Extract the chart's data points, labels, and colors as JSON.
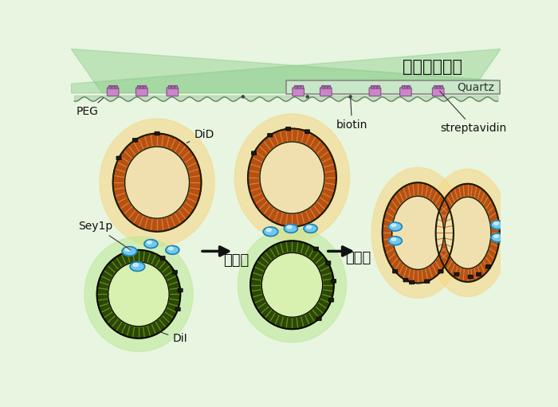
{
  "title": "전반사현미경",
  "quartz_label": "Quartz",
  "peg_label": "PEG",
  "did_label": "DiD",
  "dil_label": "DiI",
  "biotin_label": "biotin",
  "streptavidin_label": "streptavidin",
  "sey1p_label": "Sey1p",
  "step1_label": "막접촉",
  "step2_label": "막융합",
  "bg_color": "#e8f5e0",
  "membrane_orange_outer": "#b85010",
  "membrane_orange_stripe": "#d48040",
  "membrane_orange_inner_bg": "#f0e0b0",
  "glow_orange": "#f5d888",
  "membrane_green_outer": "#2a4808",
  "membrane_green_stripe": "#6a9010",
  "membrane_green_inner_bg": "#d8f0b0",
  "glow_green": "#b8e890",
  "protein_color": "#70c8f0",
  "protein_edge": "#2080b0",
  "streptavidin_fill": "#c888c8",
  "streptavidin_edge": "#885088",
  "connector_color": "#222222",
  "arrow_color": "#111111",
  "text_color": "#111111",
  "quartz_fill": "#c8e8c8",
  "quartz_edge": "#888888",
  "lipid_color": "#a0c8a0",
  "peg_color": "#888888",
  "beam_color": "#80c880",
  "beam_alpha": 0.4,
  "figsize": [
    7.0,
    5.11
  ],
  "dpi": 100
}
